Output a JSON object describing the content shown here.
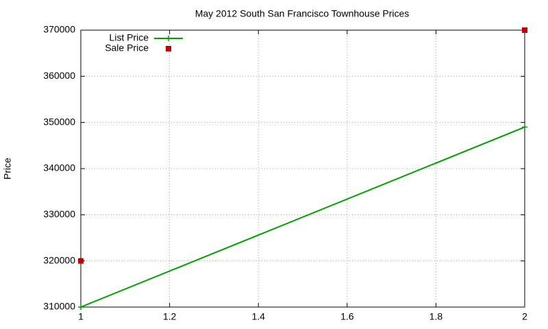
{
  "chart_data": {
    "type": "scatter",
    "title": "May 2012 South San Francisco Townhouse Prices",
    "y_label": "Price",
    "x": [
      1,
      2
    ],
    "series": [
      {
        "name": "List Price",
        "color": "#00a000",
        "mode": "linespoints",
        "values": [
          310000,
          349000
        ]
      },
      {
        "name": "Sale Price",
        "color": "#c00000",
        "mode": "points",
        "values": [
          320000,
          370000
        ]
      }
    ],
    "xlim": [
      1,
      2
    ],
    "xticks": [
      1,
      1.2,
      1.4,
      1.6,
      1.8,
      2
    ],
    "ylim": [
      310000,
      370000
    ],
    "yticks": [
      310000,
      320000,
      330000,
      340000,
      350000,
      360000,
      370000
    ],
    "grid": true,
    "legend": "top-left"
  }
}
